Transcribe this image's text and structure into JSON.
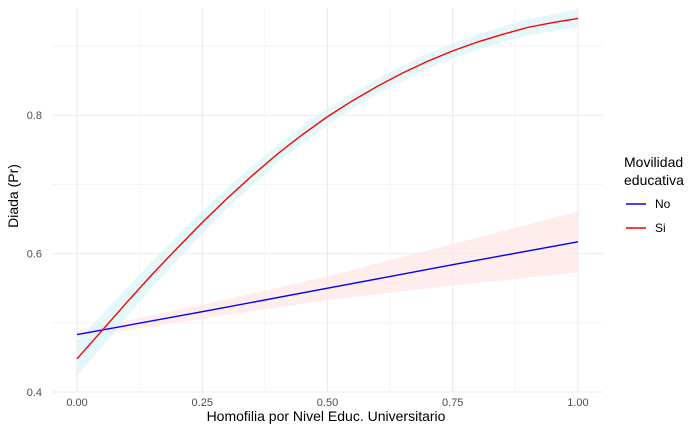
{
  "chart_data": {
    "type": "line",
    "title": "",
    "xlabel": "Homofilia por Nivel Educ. Universitario",
    "ylabel": "Diada (Pr)",
    "xlim": [
      -0.05,
      1.05
    ],
    "ylim": [
      0.4,
      0.955
    ],
    "x_ticks": [
      0.0,
      0.25,
      0.5,
      0.75,
      1.0
    ],
    "x_tick_labels": [
      "0.00",
      "0.25",
      "0.50",
      "0.75",
      "1.00"
    ],
    "y_ticks": [
      0.4,
      0.6,
      0.8
    ],
    "y_tick_labels": [
      "0.4",
      "0.6",
      "0.8"
    ],
    "grid": true,
    "legend_position": "right",
    "legend_title": [
      "Movilidad",
      "educativa"
    ],
    "series": [
      {
        "name": "No",
        "color": "#0000ff",
        "band_color": "#ffe4e4",
        "x": [
          0.0,
          0.25,
          0.5,
          0.75,
          1.0
        ],
        "y": [
          0.483,
          0.516,
          0.55,
          0.584,
          0.617
        ],
        "lower": [
          0.478,
          0.506,
          0.533,
          0.554,
          0.573
        ],
        "upper": [
          0.488,
          0.526,
          0.567,
          0.614,
          0.661
        ]
      },
      {
        "name": "Si",
        "color": "#ff0000",
        "band_color": "#d9f4f6",
        "x": [
          0.0,
          0.05,
          0.1,
          0.15,
          0.2,
          0.25,
          0.3,
          0.35,
          0.4,
          0.45,
          0.5,
          0.55,
          0.6,
          0.65,
          0.7,
          0.75,
          0.8,
          0.85,
          0.9,
          0.95,
          1.0
        ],
        "y": [
          0.448,
          0.489,
          0.53,
          0.57,
          0.608,
          0.645,
          0.68,
          0.713,
          0.744,
          0.772,
          0.798,
          0.821,
          0.842,
          0.861,
          0.878,
          0.893,
          0.906,
          0.917,
          0.927,
          0.934,
          0.94
        ],
        "lower": [
          0.423,
          0.466,
          0.509,
          0.551,
          0.591,
          0.629,
          0.665,
          0.699,
          0.731,
          0.76,
          0.786,
          0.81,
          0.831,
          0.85,
          0.867,
          0.882,
          0.895,
          0.906,
          0.915,
          0.922,
          0.927
        ],
        "upper": [
          0.473,
          0.512,
          0.551,
          0.589,
          0.625,
          0.661,
          0.695,
          0.727,
          0.757,
          0.784,
          0.81,
          0.832,
          0.853,
          0.872,
          0.889,
          0.904,
          0.917,
          0.928,
          0.939,
          0.946,
          0.953
        ]
      }
    ]
  }
}
